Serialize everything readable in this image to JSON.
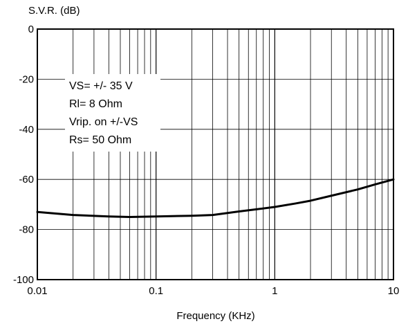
{
  "chart_data": {
    "type": "line",
    "ylabel": "S.V.R. (dB)",
    "xlabel": "Frequency (KHz)",
    "x_scale": "log",
    "xlim": [
      0.01,
      10
    ],
    "ylim": [
      -100,
      0
    ],
    "grid": true,
    "x_tick_labels": [
      "0.01",
      "0.1",
      "1",
      "10"
    ],
    "y_ticks": [
      0,
      -20,
      -40,
      -60,
      -80,
      -100
    ],
    "y_tick_labels": [
      "0",
      "-20",
      "-40",
      "-60",
      "-80",
      "-100"
    ],
    "annotation": [
      "VS= +/- 35 V",
      "Rl= 8 Ohm",
      "Vrip. on +/-VS",
      "Rs= 50 Ohm"
    ],
    "series": [
      {
        "color": "#000000",
        "x": [
          0.01,
          0.02,
          0.04,
          0.06,
          0.1,
          0.2,
          0.3,
          0.5,
          1,
          1.5,
          2,
          3,
          5,
          7,
          10
        ],
        "y": [
          -73,
          -74.2,
          -74.8,
          -75,
          -74.8,
          -74.5,
          -74.2,
          -72.8,
          -71,
          -69.6,
          -68.5,
          -66.5,
          -64,
          -62,
          -60
        ]
      }
    ]
  }
}
